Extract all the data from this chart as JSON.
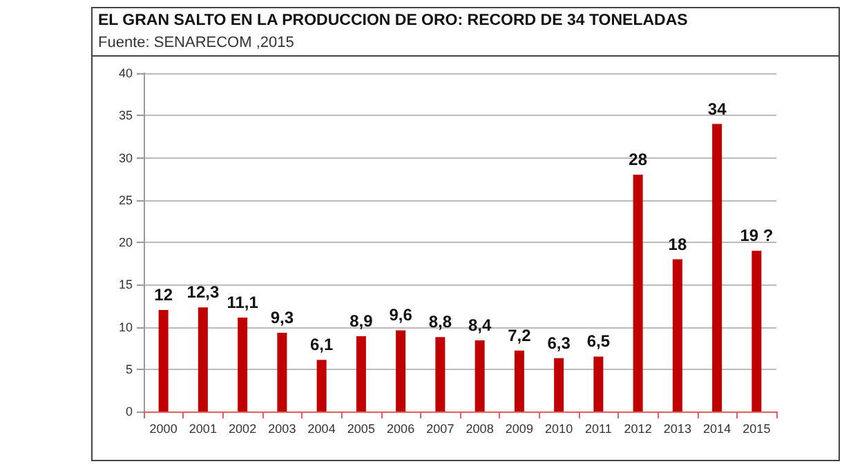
{
  "chart_data": {
    "type": "bar",
    "title": "EL GRAN SALTO EN LA PRODUCCION DE ORO: RECORD DE 34 TONELADAS",
    "subtitle": "Fuente: SENARECOM ,2015",
    "categories": [
      "2000",
      "2001",
      "2002",
      "2003",
      "2004",
      "2005",
      "2006",
      "2007",
      "2008",
      "2009",
      "2010",
      "2011",
      "2012",
      "2013",
      "2014",
      "2015"
    ],
    "values": [
      12,
      12.3,
      11.1,
      9.3,
      6.1,
      8.9,
      9.6,
      8.8,
      8.4,
      7.2,
      6.3,
      6.5,
      28,
      18,
      34,
      19
    ],
    "value_labels": [
      "12",
      "12,3",
      "11,1",
      "9,3",
      "6,1",
      "8,9",
      "9,6",
      "8,8",
      "8,4",
      "7,2",
      "6,3",
      "6,5",
      "28",
      "18",
      "34",
      "19 ?"
    ],
    "color": "#c00000",
    "ylim": [
      0,
      40
    ],
    "yticks": [
      0,
      5,
      10,
      15,
      20,
      25,
      30,
      35,
      40
    ],
    "grid": "y"
  }
}
